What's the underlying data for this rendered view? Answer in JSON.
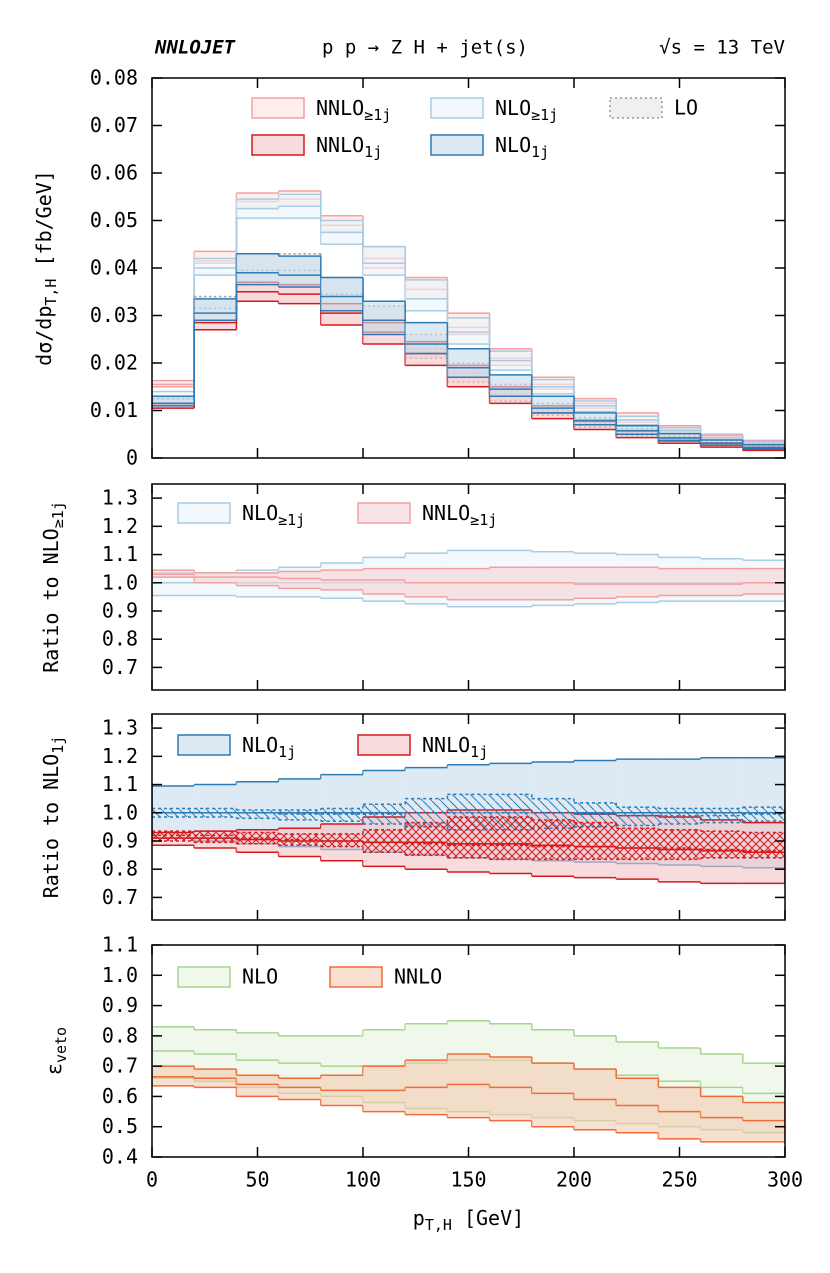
{
  "chart_data": [
    {
      "type": "histogram",
      "title": "NNLOJET",
      "subtitle": "p p → Z H + jet(s)",
      "annotation": "√s = 13 TeV",
      "ylabel": "dσ/dpT,H [fb/GeV]",
      "bins": [
        0,
        20,
        40,
        60,
        80,
        100,
        120,
        140,
        160,
        180,
        200,
        220,
        240,
        260,
        280,
        300
      ],
      "xlim": [
        0,
        300
      ],
      "xticks": [
        0,
        50,
        100,
        150,
        200,
        250,
        300
      ],
      "ylim": [
        0,
        0.08
      ],
      "yticks": [
        0,
        0.01,
        0.02,
        0.03,
        0.04,
        0.05,
        0.06,
        0.07,
        0.08
      ],
      "legend_columns": 3,
      "series": [
        {
          "name": "NNLO≥1j",
          "color": "#f4a0a0",
          "fill": "#fde3e3",
          "fill_style": "solid",
          "values": [
            0.0155,
            0.0415,
            0.054,
            0.0545,
            0.049,
            0.042,
            0.0355,
            0.0275,
            0.021,
            0.0155,
            0.0115,
            0.008,
            0.006,
            0.0045,
            0.0033
          ],
          "lower": [
            0.015,
            0.041,
            0.0525,
            0.053,
            0.0475,
            0.04,
            0.0335,
            0.026,
            0.0195,
            0.0145,
            0.0105,
            0.0075,
            0.0055,
            0.004,
            0.003
          ],
          "upper": [
            0.0163,
            0.0435,
            0.0558,
            0.0562,
            0.051,
            0.0445,
            0.038,
            0.0305,
            0.023,
            0.017,
            0.0125,
            0.0095,
            0.0068,
            0.005,
            0.0037
          ]
        },
        {
          "name": "NLO≥1j",
          "color": "#a9cce3",
          "fill": "#eaf3f9",
          "fill_style": "solid",
          "values": [
            0.0125,
            0.04,
            0.0525,
            0.053,
            0.0475,
            0.041,
            0.0335,
            0.0265,
            0.0205,
            0.015,
            0.011,
            0.008,
            0.0058,
            0.0043,
            0.0031
          ],
          "lower": [
            0.0115,
            0.0385,
            0.0505,
            0.0505,
            0.045,
            0.0385,
            0.031,
            0.024,
            0.0185,
            0.0135,
            0.0098,
            0.007,
            0.0052,
            0.0038,
            0.0028
          ],
          "upper": [
            0.014,
            0.042,
            0.0545,
            0.0555,
            0.05,
            0.0445,
            0.0375,
            0.0295,
            0.0225,
            0.0165,
            0.012,
            0.0088,
            0.0064,
            0.0048,
            0.0035
          ]
        },
        {
          "name": "LO",
          "color": "#999999",
          "fill": "#e6e6e6",
          "fill_style": "dotted",
          "values": [
            0.0115,
            0.0315,
            0.0395,
            0.0395,
            0.0345,
            0.0285,
            0.023,
            0.018,
            0.0135,
            0.01,
            0.0073,
            0.0053,
            0.004,
            0.003,
            0.0022
          ],
          "lower": [
            0.0105,
            0.029,
            0.0365,
            0.036,
            0.031,
            0.026,
            0.021,
            0.016,
            0.012,
            0.009,
            0.0065,
            0.0047,
            0.0035,
            0.0026,
            0.0019
          ],
          "upper": [
            0.0125,
            0.034,
            0.043,
            0.043,
            0.038,
            0.032,
            0.026,
            0.02,
            0.0155,
            0.0115,
            0.0085,
            0.0062,
            0.0046,
            0.0035,
            0.0026
          ]
        },
        {
          "name": "NNLO1j",
          "color": "#d7191c",
          "fill": "#f3c4c6",
          "fill_style": "solid",
          "values": [
            0.011,
            0.0285,
            0.035,
            0.0345,
            0.0305,
            0.0265,
            0.022,
            0.017,
            0.013,
            0.0095,
            0.007,
            0.005,
            0.0036,
            0.0027,
            0.0019
          ],
          "lower": [
            0.0105,
            0.027,
            0.033,
            0.0325,
            0.028,
            0.024,
            0.0195,
            0.015,
            0.0115,
            0.0083,
            0.006,
            0.0043,
            0.0031,
            0.0023,
            0.0016
          ],
          "upper": [
            0.0115,
            0.029,
            0.037,
            0.0365,
            0.0325,
            0.0285,
            0.0245,
            0.0195,
            0.015,
            0.011,
            0.008,
            0.0058,
            0.0043,
            0.0032,
            0.0023
          ]
        },
        {
          "name": "NLO1j",
          "color": "#2c7bb6",
          "fill": "#c6dbeb",
          "fill_style": "solid",
          "values": [
            0.0115,
            0.0305,
            0.039,
            0.0385,
            0.034,
            0.029,
            0.024,
            0.019,
            0.0145,
            0.0105,
            0.0078,
            0.0057,
            0.0042,
            0.0031,
            0.0022
          ],
          "lower": [
            0.011,
            0.029,
            0.0365,
            0.036,
            0.031,
            0.026,
            0.022,
            0.017,
            0.013,
            0.0095,
            0.007,
            0.005,
            0.0037,
            0.0027,
            0.002
          ],
          "upper": [
            0.013,
            0.0335,
            0.043,
            0.0425,
            0.038,
            0.033,
            0.0285,
            0.023,
            0.0175,
            0.013,
            0.0095,
            0.0068,
            0.0051,
            0.0038,
            0.0028
          ]
        }
      ]
    },
    {
      "type": "histogram",
      "ylabel": "Ratio to NLO≥1j",
      "bins": [
        0,
        20,
        40,
        60,
        80,
        100,
        120,
        140,
        160,
        180,
        200,
        220,
        240,
        260,
        280,
        300
      ],
      "xlim": [
        0,
        300
      ],
      "xticks": [
        0,
        50,
        100,
        150,
        200,
        250,
        300
      ],
      "ylim": [
        0.62,
        1.35
      ],
      "yticks": [
        0.7,
        0.8,
        0.9,
        {
          "value": 1,
          "label": "1.0"
        },
        1.1,
        1.2,
        1.3
      ],
      "legend_columns": 2,
      "series": [
        {
          "name": "NLO≥1j",
          "color": "#a9cce3",
          "fill": "#eaf3f9",
          "fill_style": "solid",
          "values": [
            1,
            1,
            1,
            1,
            1,
            1,
            1,
            1,
            1,
            1,
            1,
            1,
            1,
            1,
            1
          ],
          "lower": [
            0.955,
            0.955,
            0.95,
            0.95,
            0.945,
            0.935,
            0.925,
            0.915,
            0.915,
            0.92,
            0.925,
            0.93,
            0.935,
            0.935,
            0.935
          ],
          "upper": [
            1.035,
            1.035,
            1.045,
            1.055,
            1.07,
            1.09,
            1.105,
            1.115,
            1.115,
            1.11,
            1.105,
            1.1,
            1.09,
            1.085,
            1.08
          ]
        },
        {
          "name": "NNLO≥1j",
          "color": "#f4a0a0",
          "fill": "#f6d3d6",
          "fill_style": "solid",
          "values": [
            1.03,
            1.02,
            1.02,
            1.015,
            1.01,
            1.01,
            1,
            1,
            1,
            1,
            0.995,
            0.995,
            0.995,
            0.995,
            1
          ],
          "lower": [
            1.02,
            1,
            0.99,
            0.98,
            0.975,
            0.96,
            0.95,
            0.94,
            0.94,
            0.94,
            0.945,
            0.95,
            0.955,
            0.955,
            0.96
          ],
          "upper": [
            1.045,
            1.035,
            1.035,
            1.04,
            1.045,
            1.05,
            1.05,
            1.05,
            1.055,
            1.055,
            1.055,
            1.055,
            1.05,
            1.05,
            1.05
          ]
        }
      ]
    },
    {
      "type": "histogram",
      "ylabel": "Ratio to NLO1j",
      "bins": [
        0,
        20,
        40,
        60,
        80,
        100,
        120,
        140,
        160,
        180,
        200,
        220,
        240,
        260,
        280,
        300
      ],
      "xlim": [
        0,
        300
      ],
      "xticks": [
        0,
        50,
        100,
        150,
        200,
        250,
        300
      ],
      "ylim": [
        0.62,
        1.35
      ],
      "yticks": [
        0.7,
        0.8,
        0.9,
        {
          "value": 1,
          "label": "1.0"
        },
        1.1,
        1.2,
        1.3
      ],
      "legend_columns": 2,
      "series": [
        {
          "name": "NLO1j",
          "color": "#2c7bb6",
          "fill": "#c6dbeb",
          "fill_style": "solid",
          "values": [
            1,
            1,
            1,
            1,
            1,
            1,
            1,
            1,
            1,
            1,
            1,
            1,
            1,
            1,
            1
          ],
          "lower": [
            0.91,
            0.9,
            0.89,
            0.88,
            0.87,
            0.86,
            0.85,
            0.84,
            0.835,
            0.83,
            0.825,
            0.82,
            0.815,
            0.81,
            0.805
          ],
          "upper": [
            1.095,
            1.1,
            1.11,
            1.12,
            1.135,
            1.15,
            1.16,
            1.17,
            1.175,
            1.18,
            1.185,
            1.19,
            1.19,
            1.195,
            1.195
          ]
        },
        {
          "name": "NNLO1j",
          "color": "#d7191c",
          "fill": "#f3c4c6",
          "fill_style": "solid",
          "values": [
            0.91,
            0.91,
            0.905,
            0.9,
            0.9,
            0.895,
            0.895,
            0.89,
            0.89,
            0.885,
            0.88,
            0.875,
            0.87,
            0.865,
            0.86
          ],
          "lower": [
            0.885,
            0.875,
            0.86,
            0.845,
            0.83,
            0.81,
            0.8,
            0.79,
            0.785,
            0.775,
            0.77,
            0.765,
            0.755,
            0.75,
            0.75
          ],
          "upper": [
            0.93,
            0.935,
            0.94,
            0.945,
            0.96,
            0.985,
            1,
            1.01,
            1.01,
            1,
            0.995,
            0.99,
            0.985,
            0.975,
            0.965
          ]
        },
        {
          "name": null,
          "color": "#2c7bb6",
          "fill": "#2c7bb6",
          "fill_style": "hatch",
          "values": [
            1,
            1,
            1,
            0.995,
            0.995,
            0.995,
            1,
            1,
            1,
            1,
            0.995,
            0.99,
            0.99,
            0.99,
            0.995
          ],
          "lower": [
            0.985,
            0.985,
            0.98,
            0.975,
            0.97,
            0.96,
            0.95,
            0.94,
            0.94,
            0.945,
            0.95,
            0.955,
            0.96,
            0.965,
            0.97
          ],
          "upper": [
            1.015,
            1.015,
            1.01,
            1.01,
            1.015,
            1.03,
            1.05,
            1.065,
            1.065,
            1.05,
            1.035,
            1.02,
            1.015,
            1.015,
            1.02
          ]
        },
        {
          "name": null,
          "color": "#d7191c",
          "fill": "#d7191c",
          "fill_style": "crosshatch",
          "values": [
            0.92,
            0.92,
            0.91,
            0.905,
            0.9,
            0.895,
            0.89,
            0.885,
            0.885,
            0.88,
            0.88,
            0.875,
            0.875,
            0.87,
            0.865
          ],
          "lower": [
            0.9,
            0.895,
            0.89,
            0.885,
            0.88,
            0.86,
            0.85,
            0.84,
            0.835,
            0.835,
            0.835,
            0.835,
            0.835,
            0.84,
            0.84
          ],
          "upper": [
            0.935,
            0.935,
            0.93,
            0.925,
            0.925,
            0.94,
            0.965,
            0.985,
            0.985,
            0.975,
            0.965,
            0.945,
            0.94,
            0.935,
            0.93
          ]
        }
      ]
    },
    {
      "type": "histogram",
      "ylabel": "εveto",
      "xlabel": "pT,H [GeV]",
      "bins": [
        0,
        20,
        40,
        60,
        80,
        100,
        120,
        140,
        160,
        180,
        200,
        220,
        240,
        260,
        280,
        300
      ],
      "xlim": [
        0,
        300
      ],
      "xticks": [
        0,
        50,
        100,
        150,
        200,
        250,
        300
      ],
      "ylim": [
        0.4,
        1.1
      ],
      "yticks": [
        0.4,
        0.5,
        0.6,
        0.7,
        0.8,
        0.9,
        {
          "value": 1,
          "label": "1.0"
        },
        1.1
      ],
      "legend_columns": 2,
      "series": [
        {
          "name": "NLO",
          "color": "#a6d58e",
          "fill": "#e6f4de",
          "fill_style": "solid",
          "values": [
            0.75,
            0.74,
            0.72,
            0.71,
            0.7,
            0.7,
            0.71,
            0.72,
            0.72,
            0.71,
            0.69,
            0.67,
            0.65,
            0.63,
            0.61
          ],
          "lower": [
            0.66,
            0.65,
            0.63,
            0.61,
            0.6,
            0.58,
            0.56,
            0.55,
            0.54,
            0.53,
            0.52,
            0.51,
            0.5,
            0.49,
            0.48
          ],
          "upper": [
            0.83,
            0.82,
            0.81,
            0.8,
            0.8,
            0.82,
            0.84,
            0.85,
            0.84,
            0.82,
            0.8,
            0.78,
            0.76,
            0.74,
            0.71
          ]
        },
        {
          "name": "NNLO",
          "color": "#f06c3a",
          "fill": "#f3cbb3",
          "fill_style": "solid",
          "values": [
            0.665,
            0.66,
            0.64,
            0.63,
            0.62,
            0.62,
            0.63,
            0.64,
            0.63,
            0.61,
            0.59,
            0.57,
            0.55,
            0.53,
            0.52
          ],
          "lower": [
            0.635,
            0.63,
            0.6,
            0.59,
            0.57,
            0.55,
            0.54,
            0.53,
            0.52,
            0.5,
            0.49,
            0.48,
            0.46,
            0.45,
            0.45
          ],
          "upper": [
            0.7,
            0.69,
            0.67,
            0.66,
            0.67,
            0.7,
            0.72,
            0.74,
            0.73,
            0.71,
            0.69,
            0.66,
            0.63,
            0.6,
            0.58
          ]
        }
      ]
    }
  ]
}
